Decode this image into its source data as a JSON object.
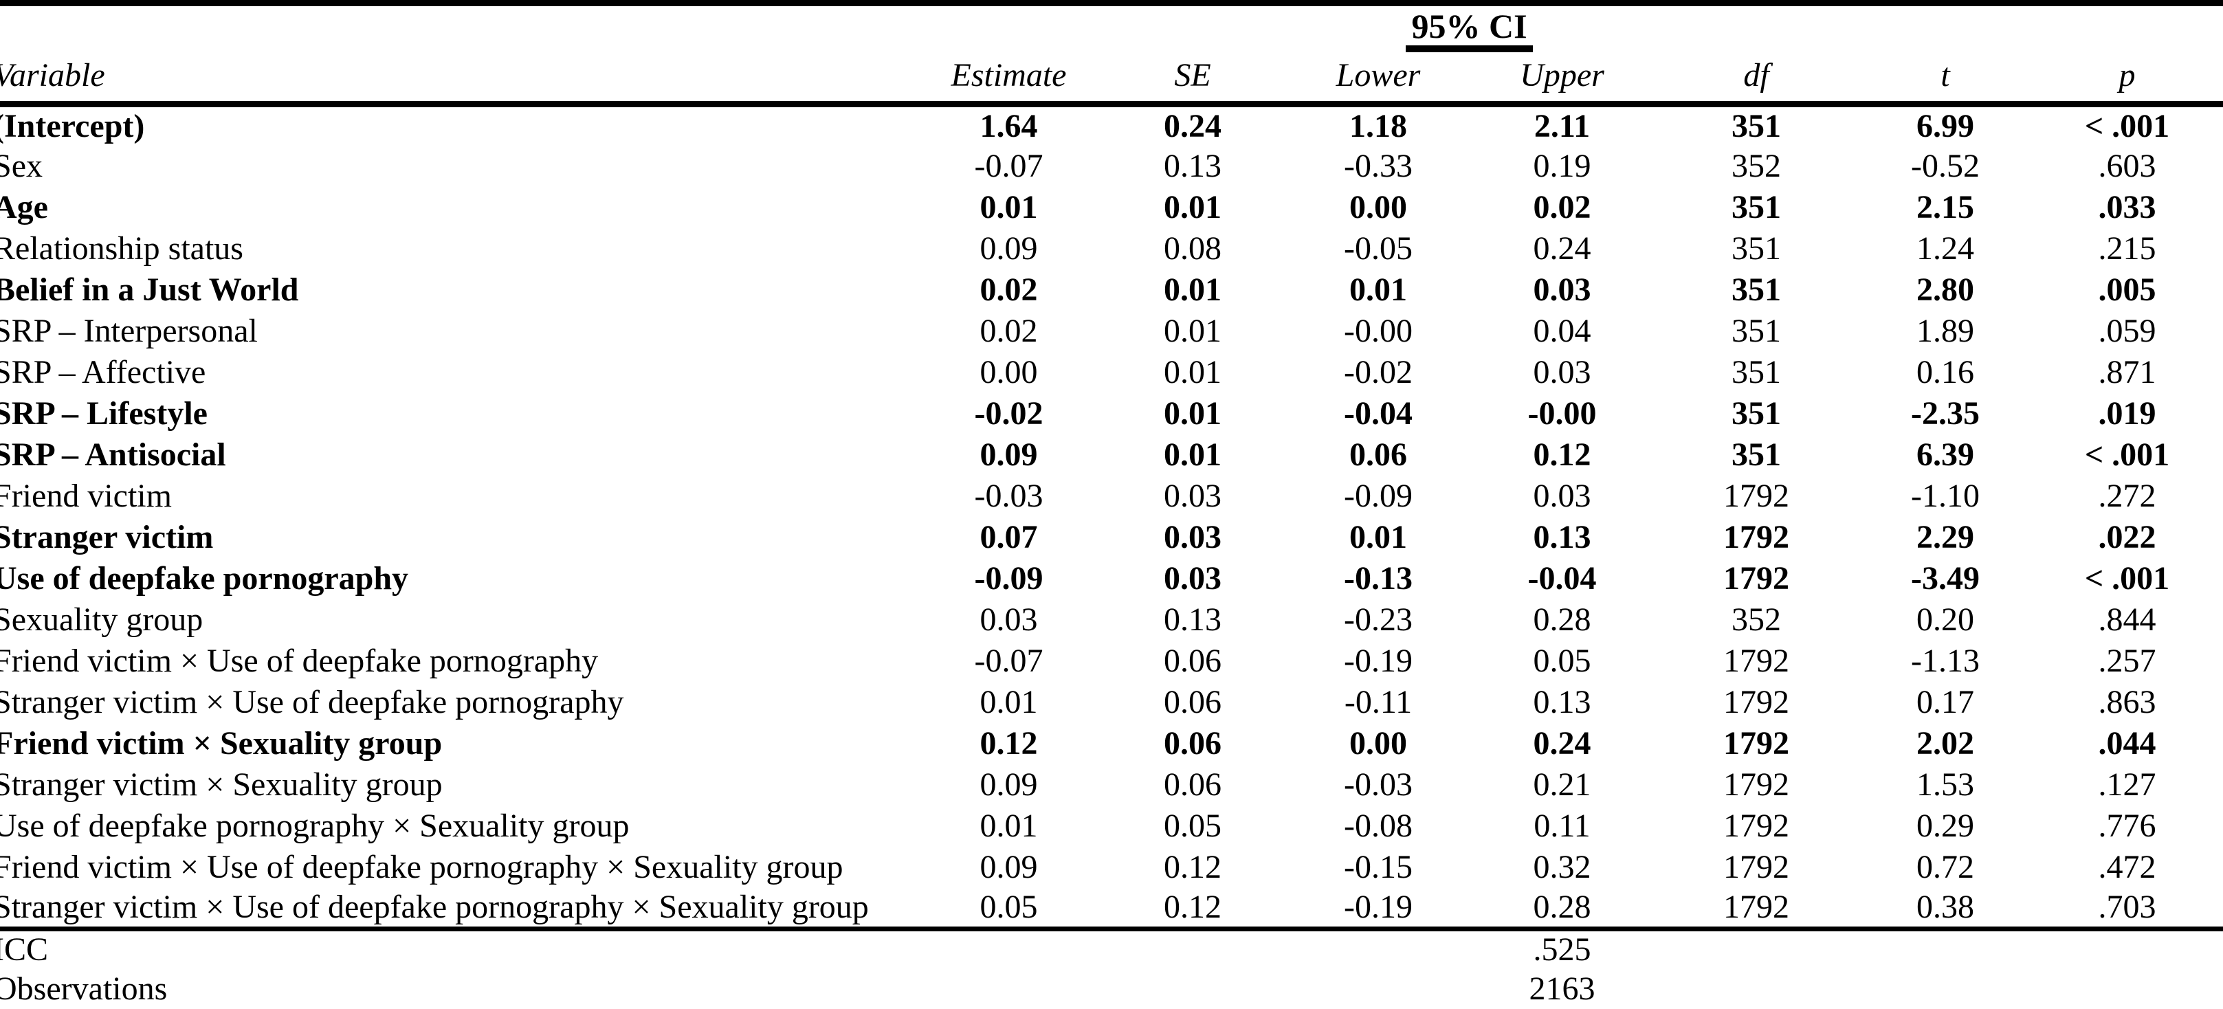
{
  "table": {
    "ci_header": "95% CI",
    "columns": [
      "Variable",
      "Estimate",
      "SE",
      "Lower",
      "Upper",
      "df",
      "t",
      "p"
    ],
    "rows": [
      {
        "variable": "(Intercept)",
        "estimate": "1.64",
        "se": "0.24",
        "lower": "1.18",
        "upper": "2.11",
        "df": "351",
        "t": "6.99",
        "p": "< .001",
        "bold": true
      },
      {
        "variable": "Sex",
        "estimate": "-0.07",
        "se": "0.13",
        "lower": "-0.33",
        "upper": "0.19",
        "df": "352",
        "t": "-0.52",
        "p": ".603",
        "bold": false
      },
      {
        "variable": "Age",
        "estimate": "0.01",
        "se": "0.01",
        "lower": "0.00",
        "upper": "0.02",
        "df": "351",
        "t": "2.15",
        "p": ".033",
        "bold": true
      },
      {
        "variable": "Relationship status",
        "estimate": "0.09",
        "se": "0.08",
        "lower": "-0.05",
        "upper": "0.24",
        "df": "351",
        "t": "1.24",
        "p": ".215",
        "bold": false
      },
      {
        "variable": "Belief in a Just World",
        "estimate": "0.02",
        "se": "0.01",
        "lower": "0.01",
        "upper": "0.03",
        "df": "351",
        "t": "2.80",
        "p": ".005",
        "bold": true
      },
      {
        "variable": "SRP – Interpersonal",
        "estimate": "0.02",
        "se": "0.01",
        "lower": "-0.00",
        "upper": "0.04",
        "df": "351",
        "t": "1.89",
        "p": ".059",
        "bold": false
      },
      {
        "variable": "SRP – Affective",
        "estimate": "0.00",
        "se": "0.01",
        "lower": "-0.02",
        "upper": "0.03",
        "df": "351",
        "t": "0.16",
        "p": ".871",
        "bold": false
      },
      {
        "variable": "SRP – Lifestyle",
        "estimate": "-0.02",
        "se": "0.01",
        "lower": "-0.04",
        "upper": "-0.00",
        "df": "351",
        "t": "-2.35",
        "p": ".019",
        "bold": true
      },
      {
        "variable": "SRP – Antisocial",
        "estimate": "0.09",
        "se": "0.01",
        "lower": "0.06",
        "upper": "0.12",
        "df": "351",
        "t": "6.39",
        "p": "< .001",
        "bold": true
      },
      {
        "variable": "Friend victim",
        "estimate": "-0.03",
        "se": "0.03",
        "lower": "-0.09",
        "upper": "0.03",
        "df": "1792",
        "t": "-1.10",
        "p": ".272",
        "bold": false
      },
      {
        "variable": "Stranger victim",
        "estimate": "0.07",
        "se": "0.03",
        "lower": "0.01",
        "upper": "0.13",
        "df": "1792",
        "t": "2.29",
        "p": ".022",
        "bold": true
      },
      {
        "variable": "Use of deepfake pornography",
        "estimate": "-0.09",
        "se": "0.03",
        "lower": "-0.13",
        "upper": "-0.04",
        "df": "1792",
        "t": "-3.49",
        "p": "< .001",
        "bold": true
      },
      {
        "variable": "Sexuality group",
        "estimate": "0.03",
        "se": "0.13",
        "lower": "-0.23",
        "upper": "0.28",
        "df": "352",
        "t": "0.20",
        "p": ".844",
        "bold": false
      },
      {
        "variable": "Friend victim × Use of deepfake pornography",
        "estimate": "-0.07",
        "se": "0.06",
        "lower": "-0.19",
        "upper": "0.05",
        "df": "1792",
        "t": "-1.13",
        "p": ".257",
        "bold": false
      },
      {
        "variable": "Stranger victim × Use of deepfake pornography",
        "estimate": "0.01",
        "se": "0.06",
        "lower": "-0.11",
        "upper": "0.13",
        "df": "1792",
        "t": "0.17",
        "p": ".863",
        "bold": false
      },
      {
        "variable": "Friend victim × Sexuality group",
        "estimate": "0.12",
        "se": "0.06",
        "lower": "0.00",
        "upper": "0.24",
        "df": "1792",
        "t": "2.02",
        "p": ".044",
        "bold": true
      },
      {
        "variable": "Stranger victim × Sexuality group",
        "estimate": "0.09",
        "se": "0.06",
        "lower": "-0.03",
        "upper": "0.21",
        "df": "1792",
        "t": "1.53",
        "p": ".127",
        "bold": false
      },
      {
        "variable": "Use of deepfake pornography × Sexuality group",
        "estimate": "0.01",
        "se": "0.05",
        "lower": "-0.08",
        "upper": "0.11",
        "df": "1792",
        "t": "0.29",
        "p": ".776",
        "bold": false
      },
      {
        "variable": "Friend victim × Use of deepfake pornography × Sexuality group",
        "estimate": "0.09",
        "se": "0.12",
        "lower": "-0.15",
        "upper": "0.32",
        "df": "1792",
        "t": "0.72",
        "p": ".472",
        "bold": false
      },
      {
        "variable": "Stranger victim × Use of deepfake pornography × Sexuality group",
        "estimate": "0.05",
        "se": "0.12",
        "lower": "-0.19",
        "upper": "0.28",
        "df": "1792",
        "t": "0.38",
        "p": ".703",
        "bold": false
      }
    ],
    "footer": [
      {
        "label": "ICC",
        "value": ".525"
      },
      {
        "label": "Observations",
        "value": "2163"
      }
    ]
  }
}
